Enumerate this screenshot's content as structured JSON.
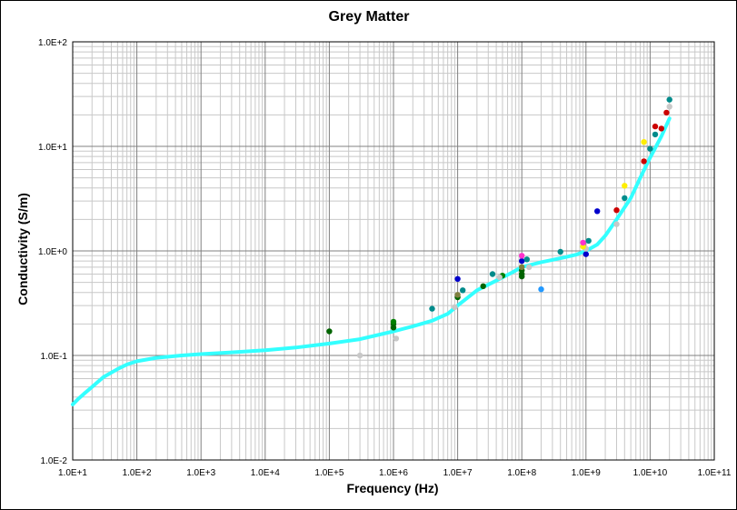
{
  "chart_data": {
    "type": "scatter",
    "title": "Grey Matter",
    "xlabel": "Frequency (Hz)",
    "ylabel": "Conductivity (S/m)",
    "x_scale": "log",
    "y_scale": "log",
    "xlim": [
      10,
      100000000000
    ],
    "ylim": [
      0.01,
      100
    ],
    "grid": true,
    "legend": "none",
    "x_tick_labels": [
      "1.0E+1",
      "1.0E+2",
      "1.0E+3",
      "1.0E+4",
      "1.0E+5",
      "1.0E+6",
      "1.0E+7",
      "1.0E+8",
      "1.0E+9",
      "1.0E+10",
      "1.0E+11"
    ],
    "y_tick_labels": [
      "1.0E+2",
      "1.0E+1",
      "1.0E+0",
      "1.0E-1",
      "1.0E-2"
    ],
    "model_curve": {
      "color": "#33ffff",
      "x": [
        10,
        12,
        15,
        20,
        30,
        50,
        70,
        100,
        200,
        500,
        1000,
        3000,
        10000,
        30000,
        100000,
        300000,
        1000000,
        2000000,
        4000000,
        7000000,
        10000000,
        20000000,
        40000000,
        70000000,
        100000000,
        200000000,
        400000000,
        700000000,
        1000000000,
        1500000000,
        2000000000,
        3000000000,
        5000000000,
        7000000000,
        10000000000,
        15000000000,
        20000000000
      ],
      "y": [
        0.034,
        0.038,
        0.043,
        0.05,
        0.062,
        0.074,
        0.082,
        0.088,
        0.095,
        0.1,
        0.103,
        0.107,
        0.112,
        0.119,
        0.13,
        0.143,
        0.17,
        0.19,
        0.215,
        0.25,
        0.3,
        0.42,
        0.52,
        0.62,
        0.7,
        0.78,
        0.85,
        0.92,
        1.0,
        1.15,
        1.4,
        2.0,
        3.2,
        5.0,
        7.8,
        12.5,
        18.5
      ]
    },
    "series": [
      {
        "color": "#006400",
        "points": [
          [
            100000,
            0.17
          ],
          [
            1000000,
            0.2
          ],
          [
            1000000,
            0.185
          ],
          [
            10000000,
            0.36
          ],
          [
            25000000,
            0.46
          ],
          [
            100000000,
            0.6
          ],
          [
            100000000,
            0.57
          ],
          [
            100000000,
            0.65
          ]
        ]
      },
      {
        "color": "#008000",
        "points": [
          [
            1000000,
            0.21
          ],
          [
            50000000,
            0.58
          ]
        ]
      },
      {
        "color": "#0000cc",
        "points": [
          [
            10000000,
            0.54
          ],
          [
            100000000,
            0.8
          ],
          [
            1000000000,
            0.93
          ],
          [
            1500000000,
            2.4
          ]
        ]
      },
      {
        "color": "#008b8b",
        "points": [
          [
            4000000,
            0.28
          ],
          [
            12000000,
            0.42
          ],
          [
            35000000,
            0.6
          ],
          [
            120000000,
            0.83
          ],
          [
            400000000,
            0.98
          ],
          [
            1100000000,
            1.25
          ],
          [
            4000000000,
            3.2
          ],
          [
            10000000000,
            9.5
          ],
          [
            12000000000,
            13.0
          ],
          [
            20000000000,
            28.0
          ]
        ]
      },
      {
        "color": "#cc0000",
        "points": [
          [
            3000000000,
            2.45
          ],
          [
            8000000000,
            7.2
          ],
          [
            12000000000,
            15.5
          ],
          [
            15000000000,
            14.8
          ],
          [
            18000000000,
            21.0
          ]
        ]
      },
      {
        "color": "#c8c8c8",
        "points": [
          [
            300000,
            0.1
          ],
          [
            1100000,
            0.145
          ],
          [
            9000000,
            0.29
          ],
          [
            45000000,
            0.56
          ],
          [
            130000000,
            0.7
          ],
          [
            1000000000,
            1.05
          ],
          [
            3000000000,
            1.8
          ],
          [
            20000000000,
            24.0
          ]
        ]
      },
      {
        "color": "#ffee00",
        "points": [
          [
            4000000000,
            4.2
          ],
          [
            8000000000,
            11.0
          ],
          [
            900000000,
            1.1
          ]
        ]
      },
      {
        "color": "#ff33cc",
        "points": [
          [
            100000000,
            0.9
          ],
          [
            900000000,
            1.2
          ]
        ]
      },
      {
        "color": "#2299ff",
        "points": [
          [
            200000000,
            0.43
          ]
        ]
      },
      {
        "color": "#808040",
        "points": [
          [
            10000000,
            0.38
          ],
          [
            100000000,
            0.7
          ]
        ]
      }
    ]
  }
}
